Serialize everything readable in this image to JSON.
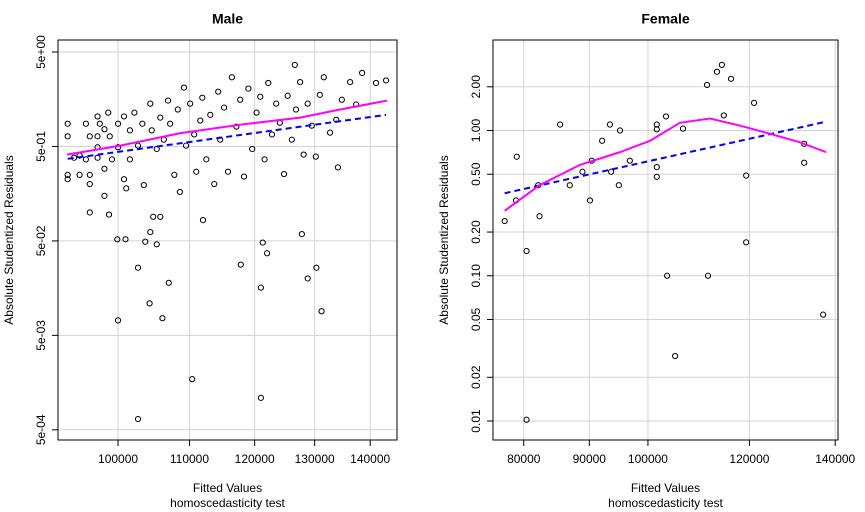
{
  "chart_data": [
    {
      "type": "scatter",
      "title": "Male",
      "xlabel": "Fitted Values",
      "subtitle": "homoscedasticity test",
      "ylabel": "Absolute Studentized Residuals",
      "xlog": true,
      "ylog": true,
      "grid": true,
      "xlim": [
        92300,
        145100
      ],
      "ylim": [
        0.00039,
        6.7
      ],
      "xticks": [
        100000,
        110000,
        120000,
        130000,
        140000
      ],
      "yticks": [
        {
          "value": 0.0005,
          "label": "5e-04"
        },
        {
          "value": 0.005,
          "label": "5e-03"
        },
        {
          "value": 0.05,
          "label": "5e-02"
        },
        {
          "value": 0.5,
          "label": "5e-01"
        },
        {
          "value": 5,
          "label": "5e+00"
        }
      ],
      "series": [
        {
          "mode": "markers",
          "color": "#000000",
          "x": [
            93500,
            93500,
            93500,
            93500,
            94300,
            95000,
            95000,
            95800,
            95800,
            96300,
            96300,
            96300,
            97300,
            97300,
            97300,
            97300,
            97600,
            98200,
            98200,
            98200,
            98700,
            98900,
            99200,
            100000,
            100000,
            100800,
            100800,
            101100,
            101600,
            101600,
            102200,
            102700,
            103300,
            103500,
            104400,
            104600,
            105300,
            105800,
            106300,
            106900,
            107200,
            107800,
            108300,
            108600,
            109200,
            109500,
            110100,
            110700,
            111000,
            111600,
            111900,
            112500,
            113100,
            113700,
            114300,
            114600,
            115200,
            115800,
            116400,
            117100,
            117700,
            118300,
            119000,
            119600,
            120300,
            120900,
            121600,
            122200,
            122800,
            123500,
            124100,
            124800,
            125400,
            126100,
            126800,
            127500,
            128100,
            128800,
            129500,
            130200,
            130900,
            131600,
            132700,
            133800,
            134100,
            134800,
            136300,
            137400,
            138500,
            141100,
            143000,
            126600,
            102700,
            110400,
            121000,
            100000,
            104300,
            106100,
            107000,
            102700,
            117800,
            121000,
            122000,
            121300,
            128800,
            130300,
            131200,
            127800,
            99900,
            101000,
            103700,
            104400,
            105300,
            104800,
            105800,
            98800,
            96300,
            112000
          ],
          "values": [
            0.87,
            0.64,
            0.25,
            0.225,
            0.38,
            0.4,
            0.25,
            0.365,
            0.87,
            0.64,
            0.25,
            0.2,
            1.04,
            0.64,
            0.49,
            0.38,
            0.87,
            0.76,
            0.29,
            0.15,
            1.14,
            0.64,
            0.365,
            0.87,
            0.49,
            1.04,
            0.225,
            0.18,
            0.74,
            0.365,
            1.14,
            0.51,
            0.87,
            0.195,
            1.42,
            0.74,
            0.47,
            1.01,
            0.59,
            1.53,
            0.87,
            0.25,
            1.23,
            0.165,
            2.1,
            0.51,
            1.42,
            0.67,
            0.27,
            0.94,
            1.64,
            0.365,
            1.08,
            0.2,
            1.9,
            0.59,
            1.29,
            0.27,
            2.7,
            0.81,
            1.56,
            0.24,
            2.05,
            0.47,
            1.14,
            1.68,
            0.365,
            2.35,
            0.67,
            1.42,
            0.89,
            0.255,
            1.72,
            0.59,
            1.23,
            2.4,
            0.41,
            1.42,
            0.83,
            0.39,
            1.76,
            2.7,
            0.7,
            0.96,
            0.3,
            1.56,
            2.4,
            1.39,
            3.0,
            2.35,
            2.5,
            3.65,
            0.00065,
            0.00172,
            0.00109,
            0.0072,
            0.0109,
            0.0076,
            0.018,
            0.026,
            0.028,
            0.016,
            0.037,
            0.048,
            0.02,
            0.026,
            0.009,
            0.059,
            0.052,
            0.052,
            0.049,
            0.062,
            0.046,
            0.09,
            0.09,
            0.095,
            0.1,
            0.083
          ]
        },
        {
          "mode": "line",
          "color": "#0000ff",
          "dash": true,
          "x": [
            93500,
            143000
          ],
          "values": [
            0.37,
            1.08
          ]
        },
        {
          "mode": "line",
          "color": "#ff00ff",
          "dash": false,
          "x": [
            93400,
            100300,
            108600,
            117700,
            127500,
            134500,
            143200
          ],
          "values": [
            0.41,
            0.51,
            0.69,
            0.85,
            1.01,
            1.23,
            1.53
          ]
        }
      ]
    },
    {
      "type": "scatter",
      "title": "Female",
      "xlabel": "Fitted Values",
      "subtitle": "homoscedasticity test",
      "ylabel": "Absolute Studentized Residuals",
      "xlog": true,
      "ylog": true,
      "grid": true,
      "xlim": [
        75700,
        140700
      ],
      "ylim": [
        0.0074,
        4.2
      ],
      "xticks": [
        80000,
        90000,
        100000,
        120000,
        140000
      ],
      "yticks": [
        0.01,
        0.02,
        0.05,
        {
          "value": 0.1,
          "label": "0.10"
        },
        {
          "value": 0.2,
          "label": "0.20"
        },
        {
          "value": 0.5,
          "label": "0.50"
        },
        {
          "value": 1,
          "label": "1.00"
        },
        {
          "value": 2,
          "label": "2.00"
        }
      ],
      "series": [
        {
          "mode": "markers",
          "color": "#000000",
          "x": [
            77300,
            78900,
            79000,
            80400,
            80400,
            82100,
            82300,
            85400,
            86900,
            88900,
            90100,
            90400,
            92100,
            93400,
            93600,
            94900,
            95100,
            96800,
            101600,
            101600,
            101600,
            101600,
            103300,
            103500,
            105000,
            106500,
            111200,
            111400,
            113200,
            114200,
            114600,
            116100,
            119300,
            119300,
            121000,
            132400,
            132400,
            137000
          ],
          "values": [
            0.238,
            0.33,
            0.66,
            0.148,
            0.0102,
            0.42,
            0.257,
            1.1,
            0.42,
            0.52,
            0.33,
            0.62,
            0.85,
            1.1,
            0.52,
            0.42,
            1.0,
            0.62,
            1.1,
            1.02,
            0.56,
            0.48,
            1.25,
            0.1,
            0.028,
            1.03,
            2.06,
            0.1,
            2.54,
            2.83,
            1.27,
            2.27,
            0.49,
            0.17,
            1.55,
            0.81,
            0.6,
            0.054
          ]
        },
        {
          "mode": "line",
          "color": "#0000ff",
          "dash": true,
          "x": [
            77300,
            137700
          ],
          "values": [
            0.37,
            1.15
          ]
        },
        {
          "mode": "line",
          "color": "#ff00ff",
          "dash": false,
          "x": [
            77300,
            82300,
            88500,
            95100,
            100400,
            105900,
            111800,
            118000,
            124500,
            131400,
            137700
          ],
          "values": [
            0.28,
            0.42,
            0.58,
            0.71,
            0.85,
            1.13,
            1.21,
            1.08,
            0.95,
            0.83,
            0.71
          ]
        }
      ]
    }
  ]
}
